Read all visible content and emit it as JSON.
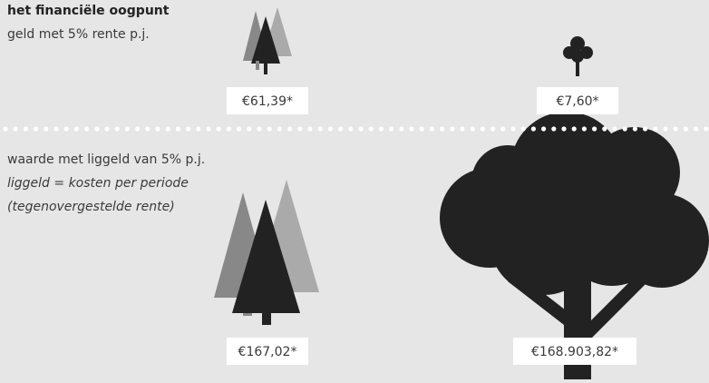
{
  "top": {
    "title": "het financiële oogpunt",
    "subtitle": "geld met 5% rente p.j.",
    "labels": [
      "€61,39*",
      "€7,60*"
    ]
  },
  "bottom": {
    "title": "waarde met liggeld van 5% p.j.",
    "notes": [
      "liggeld = kosten per periode",
      "(tegenovergestelde rente)"
    ],
    "labels": [
      "€167,02*",
      "€168.903,82*"
    ]
  }
}
